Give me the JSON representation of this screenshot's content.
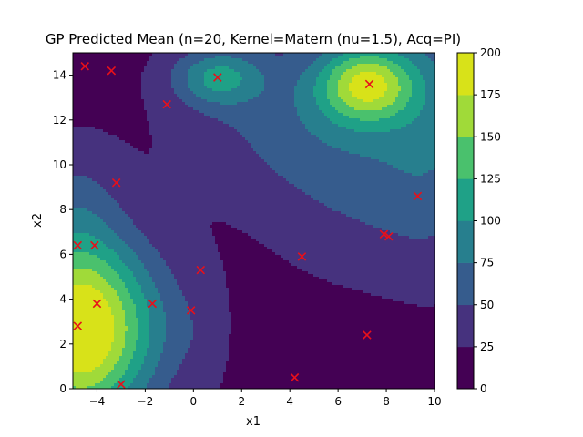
{
  "chart_data": {
    "type": "contour",
    "title": "GP Predicted Mean (n=20, Kernel=Matern (nu=1.5), Acq=PI)",
    "xlabel": "x1",
    "ylabel": "x2",
    "xlim": [
      -5,
      10
    ],
    "ylim": [
      0,
      15
    ],
    "xticks": [
      -4,
      -2,
      0,
      2,
      4,
      6,
      8,
      10
    ],
    "yticks": [
      0,
      2,
      4,
      6,
      8,
      10,
      12,
      14
    ],
    "xtick_labels": [
      "−4",
      "−2",
      "0",
      "2",
      "4",
      "6",
      "8",
      "10"
    ],
    "ytick_labels": [
      "0",
      "2",
      "4",
      "6",
      "8",
      "10",
      "12",
      "14"
    ],
    "colorbar": {
      "levels": [
        0,
        25,
        50,
        75,
        100,
        125,
        150,
        175,
        200
      ],
      "tick_labels": [
        "0",
        "25",
        "50",
        "75",
        "100",
        "125",
        "150",
        "175",
        "200"
      ],
      "colors": [
        "#440154",
        "#46327e",
        "#365c8d",
        "#277f8e",
        "#1fa187",
        "#4ac16d",
        "#a0da39",
        "#d8e219"
      ]
    },
    "points": {
      "marker": "x",
      "color": "#e8101a",
      "x": [
        -4.5,
        -3.4,
        -1.1,
        1.0,
        7.3,
        -3.2,
        9.3,
        -4.8,
        -4.1,
        4.5,
        7.9,
        8.1,
        0.3,
        -4.0,
        -1.7,
        -0.1,
        -4.8,
        7.2,
        4.2,
        -3.0
      ],
      "y": [
        14.4,
        14.2,
        12.7,
        13.9,
        13.6,
        9.2,
        8.6,
        6.4,
        6.4,
        5.9,
        6.9,
        6.8,
        5.3,
        3.8,
        3.8,
        3.5,
        2.8,
        2.4,
        0.5,
        0.2
      ]
    },
    "surface": {
      "base": 15,
      "bumps": [
        {
          "x": -4.9,
          "y": 2.6,
          "amp": 175,
          "sx": 1.8,
          "sy": 3.0
        },
        {
          "x": -5.0,
          "y": 8.5,
          "amp": 25,
          "sx": 1.4,
          "sy": 2.0
        },
        {
          "x": -2.4,
          "y": 2.8,
          "amp": 48,
          "sx": 2.0,
          "sy": 2.6
        },
        {
          "x": 0.5,
          "y": 2.2,
          "amp": 10,
          "sx": 0.6,
          "sy": 2.2
        },
        {
          "x": 1.0,
          "y": 13.9,
          "amp": 75,
          "sx": 1.3,
          "sy": 0.9
        },
        {
          "x": 7.2,
          "y": 13.6,
          "amp": 130,
          "sx": 1.4,
          "sy": 1.2
        },
        {
          "x": 7.5,
          "y": 12.5,
          "amp": 25,
          "sx": 4.0,
          "sy": 3.0
        },
        {
          "x": 4.0,
          "y": 12.2,
          "amp": 28,
          "sx": 3.5,
          "sy": 2.5
        },
        {
          "x": 7.5,
          "y": 8.3,
          "amp": 25,
          "sx": 3.0,
          "sy": 2.7
        },
        {
          "x": 10.2,
          "y": 12.0,
          "amp": 30,
          "sx": 1.6,
          "sy": 4.5
        }
      ]
    }
  }
}
